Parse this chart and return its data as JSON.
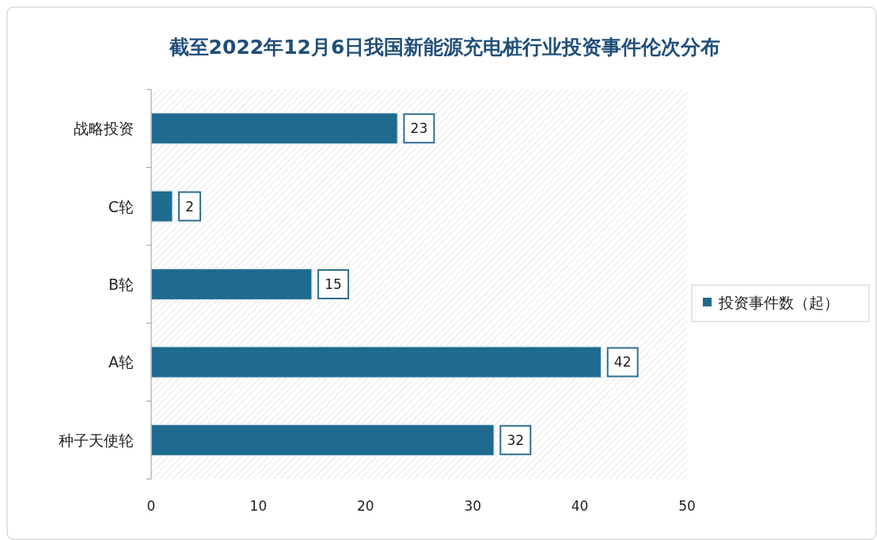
{
  "chart_data": {
    "type": "bar",
    "orientation": "horizontal",
    "title": "截至2022年12月6日我国新能源充电桩行业投资事件伦次分布",
    "categories": [
      "战略投资",
      "C轮",
      "B轮",
      "A轮",
      "种子天使轮"
    ],
    "series": [
      {
        "name": "投资事件数（起）",
        "color": "#1f6a8f",
        "values": [
          23,
          2,
          15,
          42,
          32
        ]
      }
    ],
    "xlim": [
      0,
      50
    ],
    "xticks": [
      0,
      10,
      20,
      30,
      40,
      50
    ],
    "data_labels": true,
    "legend": "right",
    "grid": false
  }
}
